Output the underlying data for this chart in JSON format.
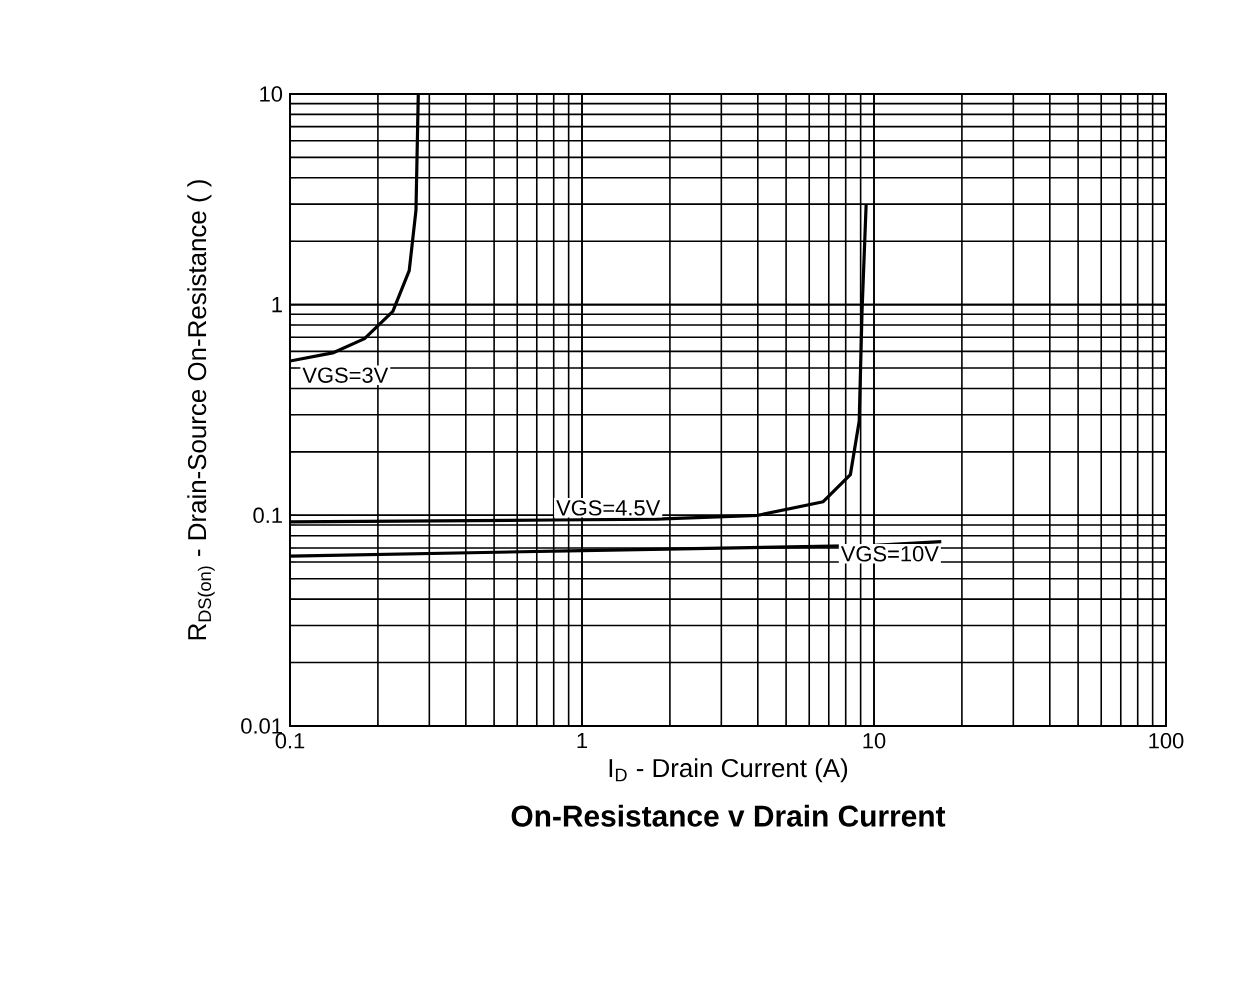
{
  "chart_data": {
    "type": "line",
    "title": "On-Resistance v Drain Current",
    "xlabel": "I$_{D}$ - Drain Current (A)",
    "ylabel": "R$_{DS(on)}$ - Drain-Source On-Resistance ( )",
    "log": "xy",
    "grid": true,
    "marker": "none",
    "line_style": "solid",
    "xlim": [
      0.1,
      100
    ],
    "xticks": [
      0.1,
      1,
      10,
      100
    ],
    "ylim": [
      0.01,
      10
    ],
    "yticks": [
      0.01,
      0.1,
      1,
      10
    ],
    "series": [
      {
        "name": "VGS=3V",
        "color": "#000000",
        "x": [
          0.1,
          0.14,
          0.18,
          0.225,
          0.256,
          0.27,
          0.275
        ],
        "values": [
          0.54,
          0.59,
          0.69,
          0.93,
          1.45,
          2.8,
          10
        ]
      },
      {
        "name": "VGS=4.5V",
        "color": "#000000",
        "x": [
          0.1,
          0.8,
          1.8,
          4.0,
          6.7,
          8.3,
          8.9,
          9.1,
          9.4
        ],
        "values": [
          0.093,
          0.095,
          0.096,
          0.1,
          0.116,
          0.156,
          0.28,
          0.93,
          3.0
        ]
      },
      {
        "name": "VGS=10V",
        "color": "#000000",
        "x": [
          0.1,
          1,
          10,
          17
        ],
        "values": [
          0.064,
          0.068,
          0.072,
          0.075
        ]
      }
    ]
  }
}
